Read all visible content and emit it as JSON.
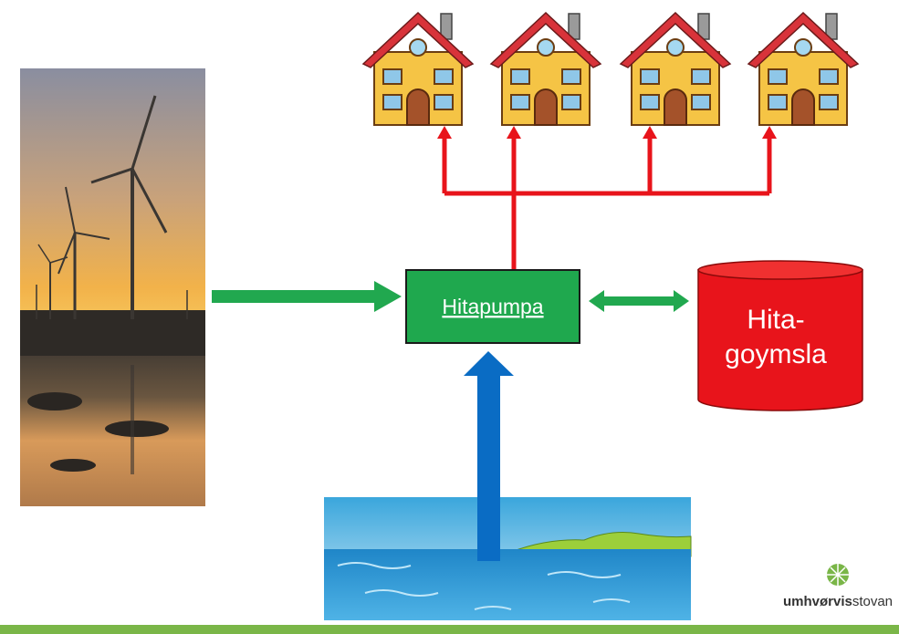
{
  "pump": {
    "label": "Hitapumpa"
  },
  "storage": {
    "label_lines": [
      "Hita-",
      "goymsla"
    ]
  },
  "logo": {
    "bold": "umhvørvis",
    "regular": "stovan"
  }
}
